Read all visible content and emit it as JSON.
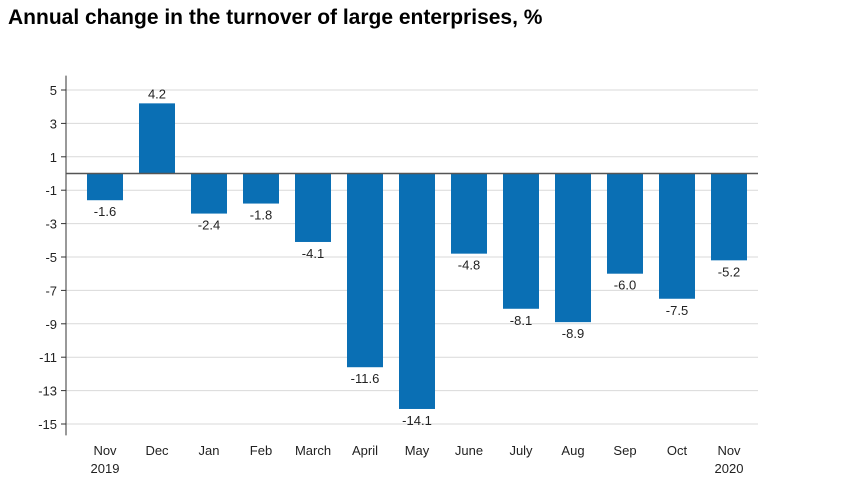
{
  "chart_data": {
    "type": "bar",
    "title": "Annual change in the turnover of large enterprises, %",
    "xlabel": "",
    "ylabel": "",
    "categories": [
      [
        "Nov",
        "2019"
      ],
      [
        "Dec"
      ],
      [
        "Jan"
      ],
      [
        "Feb"
      ],
      [
        "March"
      ],
      [
        "April"
      ],
      [
        "May"
      ],
      [
        "June"
      ],
      [
        "July"
      ],
      [
        "Aug"
      ],
      [
        "Sep"
      ],
      [
        "Oct"
      ],
      [
        "Nov",
        "2020"
      ]
    ],
    "values": [
      -1.6,
      4.2,
      -2.4,
      -1.8,
      -4.1,
      -11.6,
      -14.1,
      -4.8,
      -8.1,
      -8.9,
      -6.0,
      -7.5,
      -5.2
    ],
    "value_labels": [
      "-1.6",
      "4.2",
      "-2.4",
      "-1.8",
      "-4.1",
      "-11.6",
      "-14.1",
      "-4.8",
      "-8.1",
      "-8.9",
      "-6.0",
      "-7.5",
      "-5.2"
    ],
    "yticks": [
      5,
      3,
      1,
      -1,
      -3,
      -5,
      -7,
      -9,
      -11,
      -13,
      -15
    ],
    "ylim": [
      -15.5,
      5.5
    ],
    "grid": true,
    "legend": "none",
    "colors": {
      "bar": "#0a6fb4",
      "grid": "#d9d9d9",
      "zero_line": "#555555",
      "axis": "#333333"
    }
  }
}
